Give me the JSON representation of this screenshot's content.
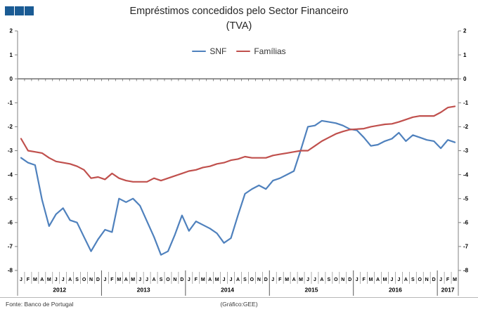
{
  "logo": {
    "color": "#1a5b94"
  },
  "footer": {
    "source": "Fonte: Banco de Portugal",
    "credit": "(Gráfico:GEE)"
  },
  "chart_data": {
    "type": "line",
    "title": "Empréstimos concedidos pelo Sector Financeiro",
    "subtitle": "(TVA)",
    "ylim": [
      -8,
      2
    ],
    "yticks": [
      2,
      1,
      0,
      -1,
      -2,
      -3,
      -4,
      -5,
      -6,
      -7,
      -8
    ],
    "grid": "none",
    "legend_position": "top-center",
    "dual_y_axis": true,
    "month_letters": [
      "J",
      "F",
      "M",
      "A",
      "M",
      "J",
      "J",
      "A",
      "S",
      "O",
      "N",
      "D"
    ],
    "years": [
      {
        "label": "2012",
        "months": 12
      },
      {
        "label": "2013",
        "months": 12
      },
      {
        "label": "2014",
        "months": 12
      },
      {
        "label": "2015",
        "months": 12
      },
      {
        "label": "2016",
        "months": 12
      },
      {
        "label": "2017",
        "months": 3
      }
    ],
    "series": [
      {
        "name": "SNF",
        "color": "#4F81BD",
        "values": [
          -3.3,
          -3.5,
          -3.6,
          -5.05,
          -6.15,
          -5.65,
          -5.4,
          -5.9,
          -6.0,
          -6.6,
          -7.2,
          -6.7,
          -6.3,
          -6.4,
          -5.0,
          -5.15,
          -5.0,
          -5.3,
          -5.95,
          -6.6,
          -7.35,
          -7.2,
          -6.5,
          -5.7,
          -6.35,
          -5.95,
          -6.1,
          -6.25,
          -6.45,
          -6.85,
          -6.65,
          -5.7,
          -4.8,
          -4.6,
          -4.45,
          -4.6,
          -4.25,
          -4.15,
          -4.0,
          -3.85,
          -2.95,
          -2.0,
          -1.95,
          -1.75,
          -1.8,
          -1.85,
          -1.95,
          -2.1,
          -2.15,
          -2.45,
          -2.8,
          -2.75,
          -2.6,
          -2.5,
          -2.25,
          -2.6,
          -2.35,
          -2.45,
          -2.55,
          -2.6,
          -2.9,
          -2.55,
          -2.65
        ]
      },
      {
        "name": "Famílias",
        "color": "#C0504D",
        "values": [
          -2.5,
          -3.0,
          -3.05,
          -3.1,
          -3.3,
          -3.45,
          -3.5,
          -3.55,
          -3.65,
          -3.8,
          -4.15,
          -4.1,
          -4.2,
          -3.95,
          -4.15,
          -4.25,
          -4.3,
          -4.3,
          -4.3,
          -4.15,
          -4.25,
          -4.15,
          -4.05,
          -3.95,
          -3.85,
          -3.8,
          -3.7,
          -3.65,
          -3.55,
          -3.5,
          -3.4,
          -3.35,
          -3.25,
          -3.3,
          -3.3,
          -3.3,
          -3.2,
          -3.15,
          -3.1,
          -3.05,
          -3.0,
          -3.0,
          -2.8,
          -2.6,
          -2.45,
          -2.3,
          -2.2,
          -2.12,
          -2.1,
          -2.08,
          -2.0,
          -1.95,
          -1.9,
          -1.88,
          -1.8,
          -1.7,
          -1.6,
          -1.55,
          -1.55,
          -1.55,
          -1.4,
          -1.2,
          -1.15
        ]
      }
    ]
  }
}
